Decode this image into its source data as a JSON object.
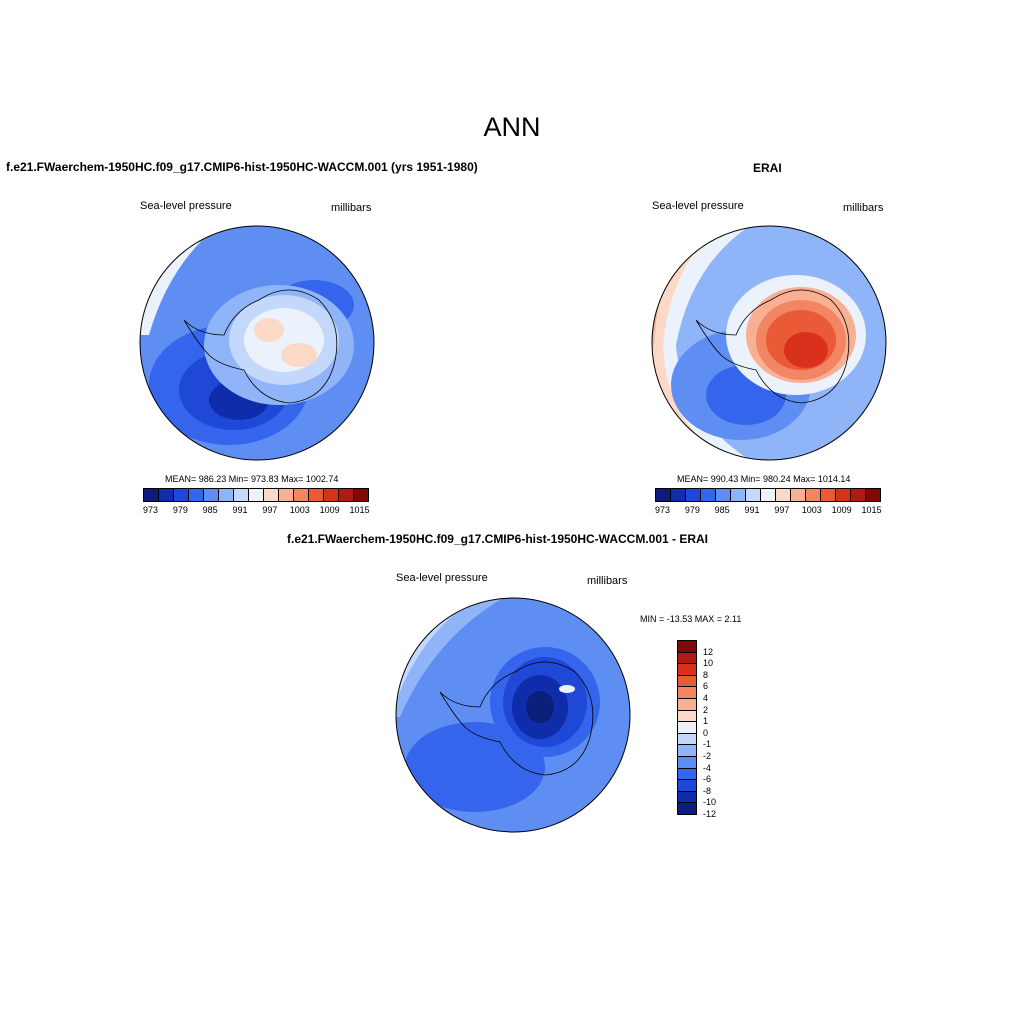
{
  "figure": {
    "season_title": "ANN",
    "panels": [
      {
        "title": "f.e21.FWaerchem-1950HC.f09_g17.CMIP6-hist-1950HC-WACCM.001 (yrs 1951-1980)",
        "left_label": "Sea-level pressure",
        "right_label": "millibars",
        "stats": "MEAN= 986.23  Min= 973.83  Max= 1002.74"
      },
      {
        "title": "ERAI",
        "left_label": "Sea-level pressure",
        "right_label": "millibars",
        "stats": "MEAN= 990.43  Min= 980.24  Max= 1014.14"
      },
      {
        "title": "f.e21.FWaerchem-1950HC.f09_g17.CMIP6-hist-1950HC-WACCM.001 - ERAI",
        "left_label": "Sea-level pressure",
        "right_label": "millibars",
        "stats": "MIN = -13.53 MAX =   2.11"
      }
    ],
    "abs_colorbar": {
      "colors": [
        "#0a1e7a",
        "#0f2dab",
        "#1f48d6",
        "#3465ec",
        "#5f8ef2",
        "#8fb4f7",
        "#c3d8fa",
        "#ecf2fb",
        "#fbd9c6",
        "#f7b093",
        "#f28564",
        "#ea5a36",
        "#d9311b",
        "#b11a12",
        "#7d0a08"
      ],
      "tick_labels": [
        "973",
        "979",
        "985",
        "991",
        "997",
        "1003",
        "1009",
        "1015"
      ]
    },
    "diff_colorbar": {
      "colors": [
        "#7d0a08",
        "#b11a12",
        "#d9311b",
        "#ea5a36",
        "#f28564",
        "#f7b093",
        "#fbd9c6",
        "#ecf2fb",
        "#c3d8fa",
        "#8fb4f7",
        "#5f8ef2",
        "#3465ec",
        "#1f48d6",
        "#0f2dab",
        "#0a1e7a"
      ],
      "tick_labels": [
        "12",
        "10",
        "8",
        "6",
        "4",
        "2",
        "1",
        "0",
        "-1",
        "-2",
        "-4",
        "-6",
        "-8",
        "-10",
        "-12"
      ]
    }
  }
}
